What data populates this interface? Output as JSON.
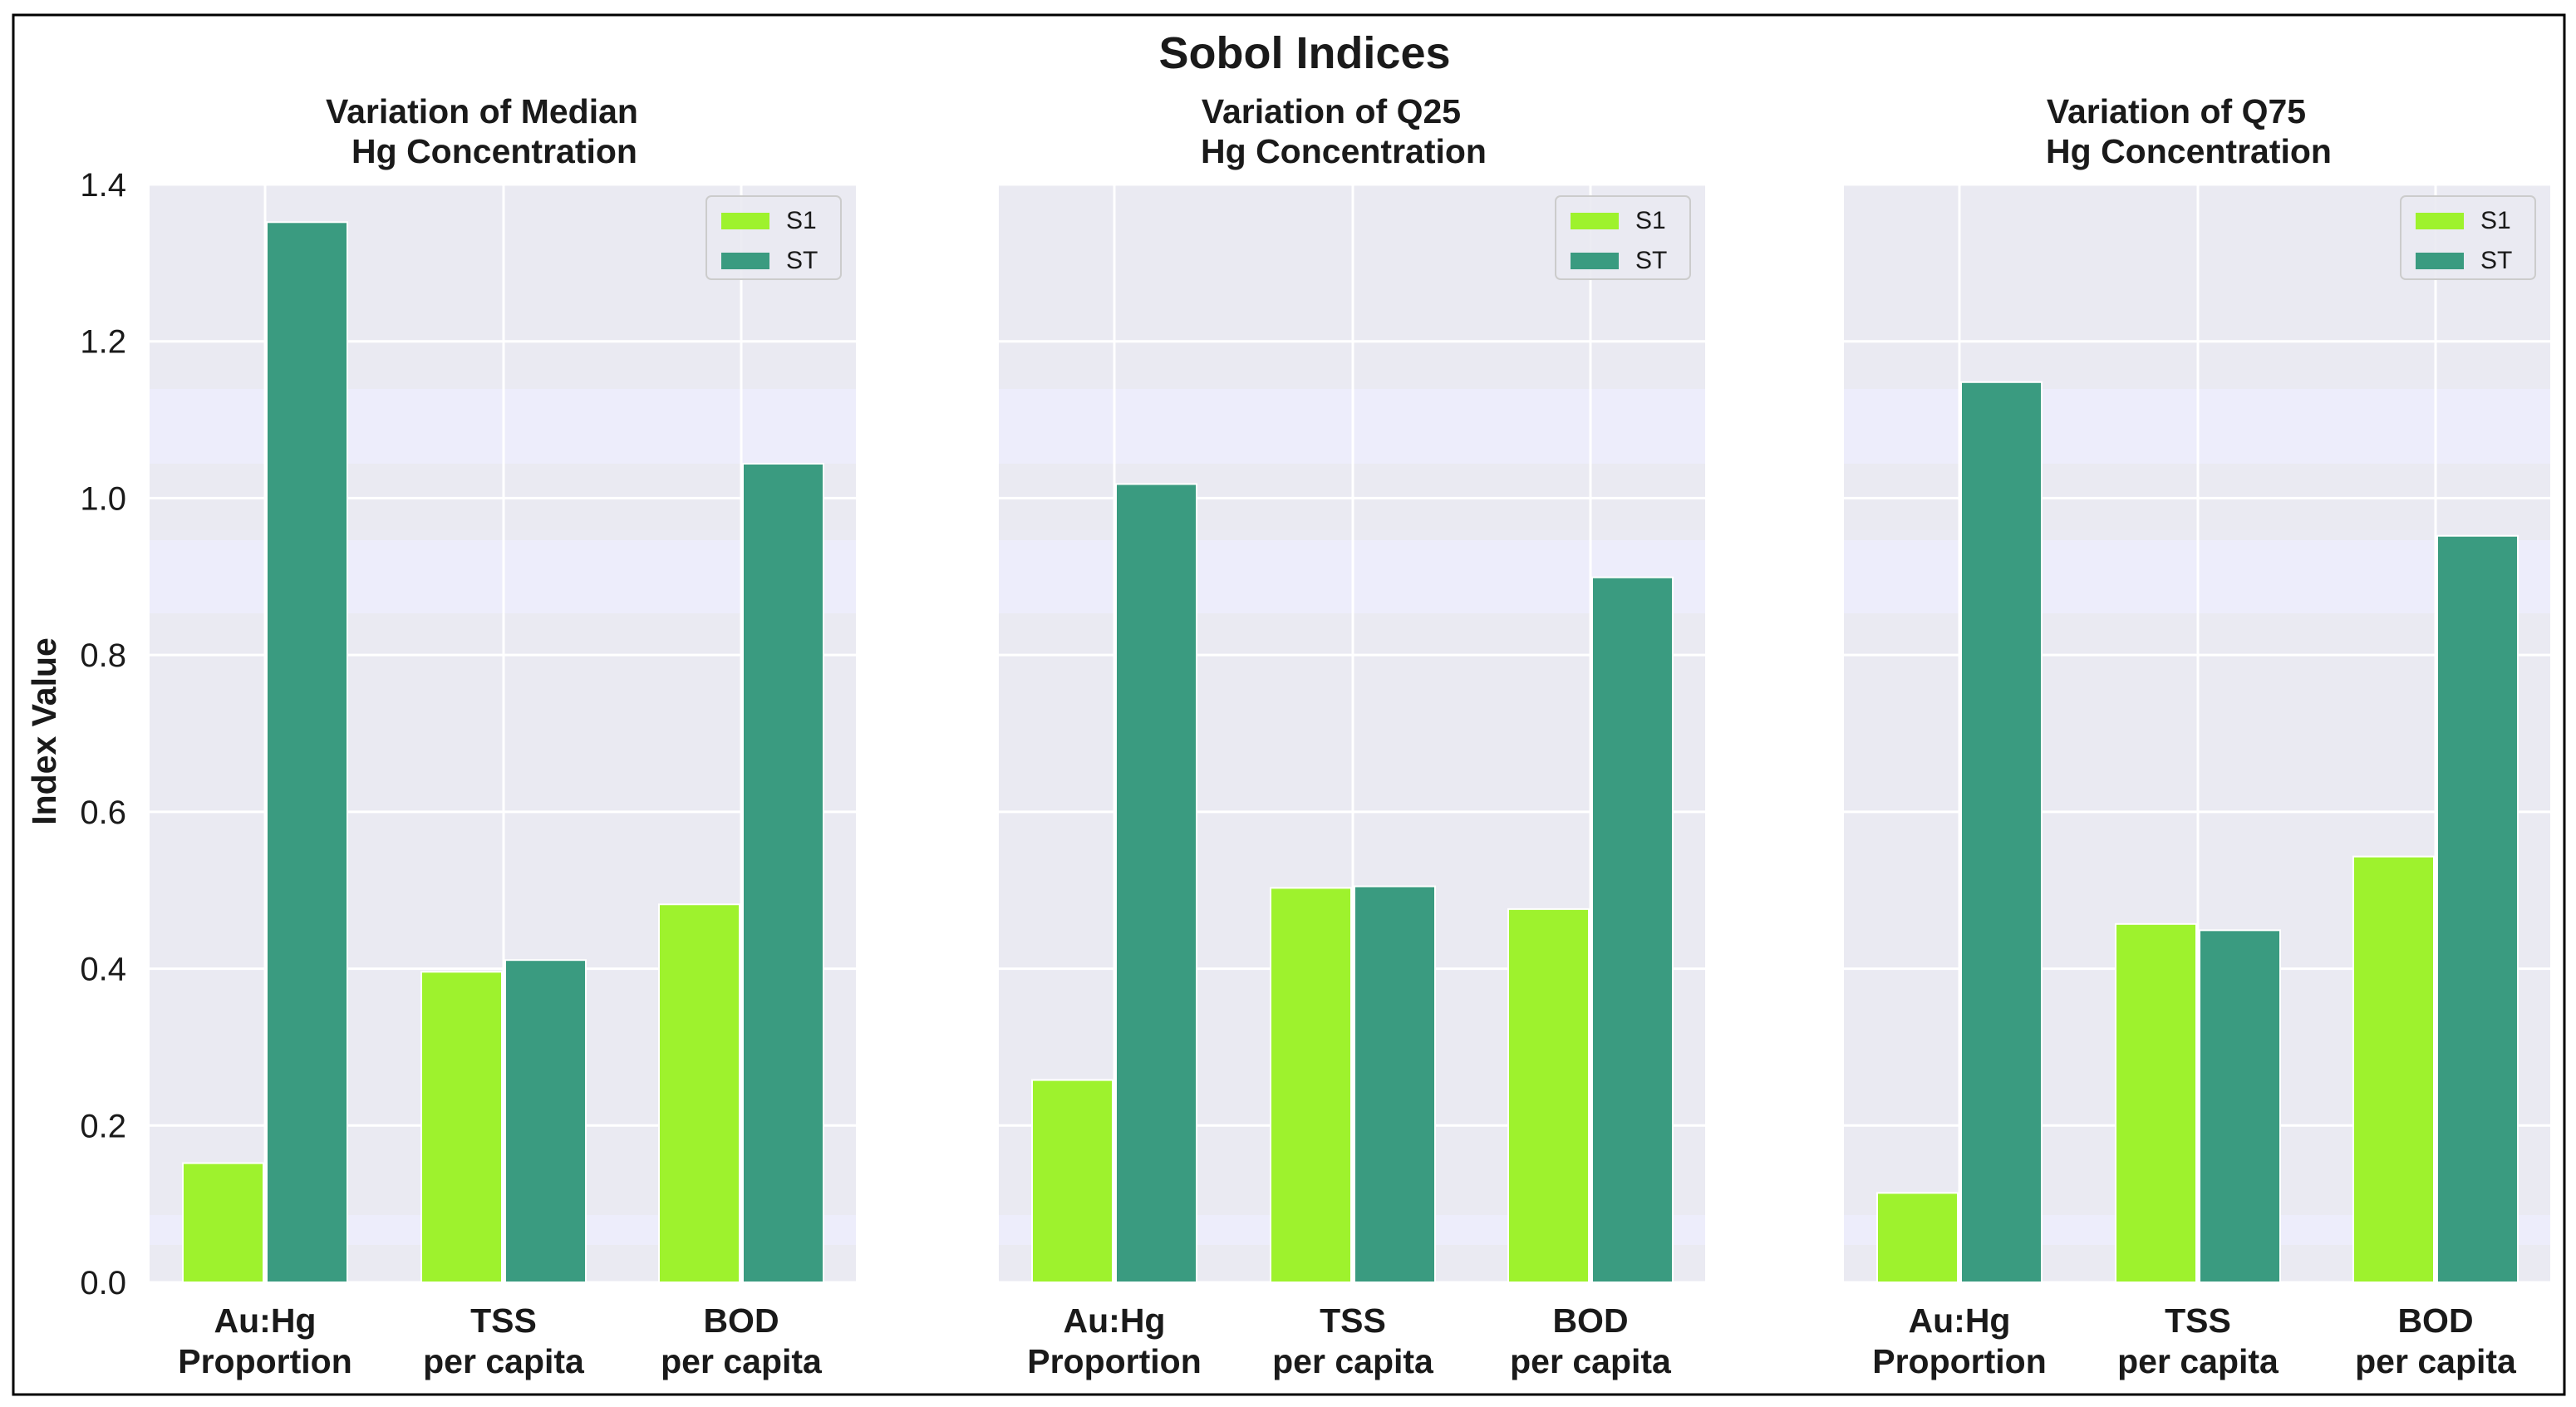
{
  "colors": {
    "s1": "#9ef22d",
    "st": "#3a9b80",
    "plot_bg": "#eaeaf2",
    "band": "#ededfb",
    "grid": "#ffffff",
    "border": "#000000"
  },
  "chart_data": {
    "type": "bar",
    "title": "Sobol Indices",
    "ylabel": "Index Value",
    "ylim": [
      0,
      1.4
    ],
    "yticks": [
      "0.0",
      "0.2",
      "0.4",
      "0.6",
      "0.8",
      "1.0",
      "1.2",
      "1.4"
    ],
    "ytick_values": [
      0,
      0.2,
      0.4,
      0.6,
      0.8,
      1.0,
      1.2,
      1.4
    ],
    "categories": [
      {
        "line1": "Au:Hg",
        "line2": "Proportion"
      },
      {
        "line1": "TSS",
        "line2": "per capita"
      },
      {
        "line1": "BOD",
        "line2": "per capita"
      }
    ],
    "legend": [
      "S1",
      "ST"
    ],
    "legend_position": "top-right",
    "panels": [
      {
        "title_line1": "Variation of Median",
        "title_line2": "Hg Concentration",
        "series": [
          {
            "name": "S1",
            "values": [
              0.152,
              0.396,
              0.482
            ]
          },
          {
            "name": "ST",
            "values": [
              1.352,
              0.411,
              1.044
            ]
          }
        ]
      },
      {
        "title_line1": "Variation of Q25",
        "title_line2": "Hg Concentration",
        "series": [
          {
            "name": "S1",
            "values": [
              0.258,
              0.503,
              0.476
            ]
          },
          {
            "name": "ST",
            "values": [
              1.018,
              0.505,
              0.899
            ]
          }
        ]
      },
      {
        "title_line1": "Variation of Q75",
        "title_line2": "Hg Concentration",
        "series": [
          {
            "name": "S1",
            "values": [
              0.114,
              0.457,
              0.543
            ]
          },
          {
            "name": "ST",
            "values": [
              1.148,
              0.449,
              0.952
            ]
          }
        ]
      }
    ]
  }
}
